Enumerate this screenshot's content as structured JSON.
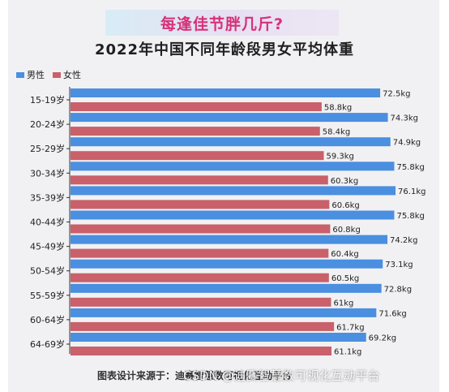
{
  "banner": {
    "text": "每逢佳节胖几斤?"
  },
  "source": {
    "text": "图表设计来源于：迪赛智慧数可视化互动平台"
  },
  "watermark": {
    "text": "CSDN @迪赛智慧数可视化互动平台"
  },
  "colors": {
    "male": "#4a8fe0",
    "female": "#c9606a",
    "background": "#f1f1f3"
  },
  "chart_data": {
    "type": "bar",
    "orientation": "horizontal",
    "title": "2022年中国不同年龄段男女平均体重",
    "categories": [
      "15-19岁",
      "20-24岁",
      "25-29岁",
      "30-34岁",
      "35-39岁",
      "40-44岁",
      "45-49岁",
      "50-54岁",
      "55-59岁",
      "60-64岁",
      "64-69岁"
    ],
    "series": [
      {
        "name": "男性",
        "unit": "kg",
        "values": [
          72.5,
          74.3,
          74.9,
          75.8,
          76.1,
          75.8,
          74.2,
          73.1,
          72.8,
          71.6,
          69.2
        ]
      },
      {
        "name": "女性",
        "unit": "kg",
        "values": [
          58.8,
          58.4,
          59.3,
          60.3,
          60.6,
          60.8,
          60.4,
          60.5,
          61,
          61.7,
          61.1
        ]
      }
    ],
    "legend": "top-left",
    "grid": false
  }
}
